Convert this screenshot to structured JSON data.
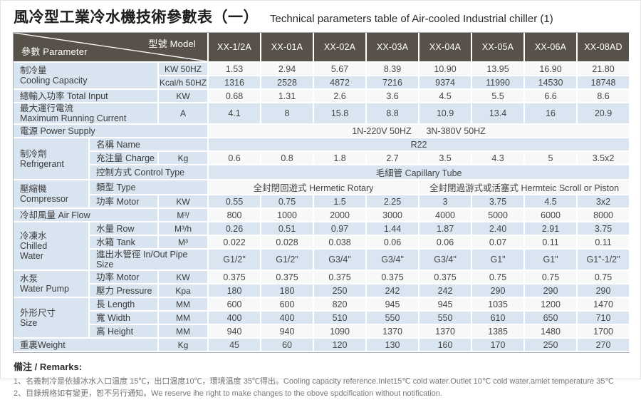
{
  "title": {
    "zh": "風冷型工業冷水機技術參數表（一）",
    "en": "Technical parameters table of Air-cooled Industrial chiller (1)"
  },
  "table": {
    "corner": {
      "top": "型號 Model",
      "bottom": "參數 Parameter"
    },
    "models": [
      "XX-1/2A",
      "XX-01A",
      "XX-02A",
      "XX-03A",
      "XX-04A",
      "XX-05A",
      "XX-06A",
      "XX-08AD"
    ],
    "rows": [
      {
        "band": "w",
        "cells": [
          {
            "kind": "label",
            "text": "制冷量\nCooling Capacity",
            "colspan": 2,
            "rowspan": 2
          },
          {
            "kind": "unit",
            "text": "KW 50HZ"
          }
        ],
        "values": [
          "1.53",
          "2.94",
          "5.67",
          "8.39",
          "10.90",
          "13.95",
          "16.90",
          "21.80"
        ]
      },
      {
        "band": "b",
        "cells": [
          {
            "kind": "unit",
            "text": "Kcal/h 50HZ"
          }
        ],
        "values": [
          "1316",
          "2528",
          "4872",
          "7216",
          "9374",
          "11990",
          "14530",
          "18748"
        ]
      },
      {
        "band": "w",
        "cells": [
          {
            "kind": "label",
            "text": "總輸入功率 Total Input",
            "colspan": 2
          },
          {
            "kind": "unit",
            "text": "KW"
          }
        ],
        "values": [
          "0.68",
          "1.31",
          "2.6",
          "3.6",
          "4.5",
          "5.5",
          "6.6",
          "8.6"
        ]
      },
      {
        "band": "b",
        "tall": true,
        "cells": [
          {
            "kind": "label",
            "text": "最大運行電流\nMaximum Running Current",
            "colspan": 2
          },
          {
            "kind": "unit",
            "text": "A"
          }
        ],
        "values": [
          "4.1",
          "8",
          "15.8",
          "8.8",
          "10.9",
          "13.4",
          "16",
          "20.9"
        ]
      },
      {
        "band": "w",
        "cells": [
          {
            "kind": "label",
            "text": "電源 Power Supply",
            "colspan": 3
          }
        ],
        "merged": [
          {
            "text": "1N-220V 50HZ      3N-380V 50HZ",
            "span": 8
          }
        ]
      },
      {
        "band": "b",
        "cells": [
          {
            "kind": "label",
            "text": "制冷劑\nRefrigerant",
            "rowspan": 3
          },
          {
            "kind": "label",
            "text": "名稱 Name",
            "colspan": 2
          }
        ],
        "merged": [
          {
            "text": "R22",
            "span": 8
          }
        ]
      },
      {
        "band": "w",
        "cells": [
          {
            "kind": "label",
            "text": "充注量 Charge"
          },
          {
            "kind": "unit",
            "text": "Kg"
          }
        ],
        "values": [
          "0.6",
          "0.8",
          "1.8",
          "2.7",
          "3.5",
          "4.3",
          "5",
          "3.5x2"
        ]
      },
      {
        "band": "b",
        "cells": [
          {
            "kind": "label",
            "text": "控制方式 Control Type",
            "colspan": 2
          }
        ],
        "merged": [
          {
            "text": "毛細管 Capillary Tube",
            "span": 8
          }
        ]
      },
      {
        "band": "w",
        "cells": [
          {
            "kind": "label",
            "text": "壓縮機\nCompressor",
            "rowspan": 2
          },
          {
            "kind": "label",
            "text": "類型 Type",
            "colspan": 2
          }
        ],
        "merged": [
          {
            "text": "全封閉回遊式 Hermetic Rotary",
            "span": 4
          },
          {
            "text": "全封閉過游式或活塞式 Hermteic Scroll or Piston",
            "span": 4
          }
        ]
      },
      {
        "band": "b",
        "cells": [
          {
            "kind": "label",
            "text": "功率 Motor"
          },
          {
            "kind": "unit",
            "text": "KW"
          }
        ],
        "values": [
          "0.55",
          "0.75",
          "1.5",
          "2.25",
          "3",
          "3.75",
          "4.5",
          "3x2"
        ]
      },
      {
        "band": "w",
        "cells": [
          {
            "kind": "label",
            "text": "冷却風量 Air Flow",
            "colspan": 2
          },
          {
            "kind": "unit",
            "text": "M³/"
          }
        ],
        "values": [
          "800",
          "1000",
          "2000",
          "3000",
          "4000",
          "5000",
          "6000",
          "8000"
        ]
      },
      {
        "band": "b",
        "cells": [
          {
            "kind": "label",
            "text": "冷凍水\nChilled\nWater",
            "rowspan": 3
          },
          {
            "kind": "label",
            "text": "水量 Row"
          },
          {
            "kind": "unit",
            "text": "M³/h"
          }
        ],
        "values": [
          "0.26",
          "0.51",
          "0.97",
          "1.44",
          "1.87",
          "2.40",
          "2.91",
          "3.75"
        ]
      },
      {
        "band": "w",
        "cells": [
          {
            "kind": "label",
            "text": "水箱 Tank"
          },
          {
            "kind": "unit",
            "text": "M³"
          }
        ],
        "values": [
          "0.022",
          "0.028",
          "0.038",
          "0.06",
          "0.06",
          "0.07",
          "0.11",
          "0.11"
        ]
      },
      {
        "band": "b",
        "cells": [
          {
            "kind": "label",
            "text": "進出水管徑 In/Out Pipe Size",
            "colspan": 2
          }
        ],
        "values": [
          "G1/2\"",
          "G1/2\"",
          "G3/4\"",
          "G3/4\"",
          "G3/4\"",
          "G1\"",
          "G1\"",
          "G1\"-1/2\""
        ]
      },
      {
        "band": "w",
        "cells": [
          {
            "kind": "label",
            "text": "水泵\nWater Pump",
            "rowspan": 2
          },
          {
            "kind": "label",
            "text": "功率 Motor"
          },
          {
            "kind": "unit",
            "text": "KW"
          }
        ],
        "values": [
          "0.375",
          "0.375",
          "0.375",
          "0.375",
          "0.375",
          "0.75",
          "0.75",
          "0.75"
        ]
      },
      {
        "band": "b",
        "cells": [
          {
            "kind": "label",
            "text": "壓力 Pressure"
          },
          {
            "kind": "unit",
            "text": "Kpa"
          }
        ],
        "values": [
          "180",
          "180",
          "250",
          "242",
          "242",
          "290",
          "290",
          "290"
        ]
      },
      {
        "band": "w",
        "cells": [
          {
            "kind": "label",
            "text": "外形尺寸\nSize",
            "rowspan": 3
          },
          {
            "kind": "label",
            "text": "長 Length"
          },
          {
            "kind": "unit",
            "text": "MM"
          }
        ],
        "values": [
          "600",
          "600",
          "820",
          "945",
          "945",
          "1035",
          "1200",
          "1470"
        ]
      },
      {
        "band": "b",
        "cells": [
          {
            "kind": "label",
            "text": "寬 Width"
          },
          {
            "kind": "unit",
            "text": "MM"
          }
        ],
        "values": [
          "400",
          "400",
          "510",
          "550",
          "550",
          "610",
          "650",
          "710"
        ]
      },
      {
        "band": "w",
        "cells": [
          {
            "kind": "label",
            "text": "高 Height"
          },
          {
            "kind": "unit",
            "text": "MM"
          }
        ],
        "values": [
          "940",
          "940",
          "1090",
          "1370",
          "1370",
          "1385",
          "1480",
          "1700"
        ]
      },
      {
        "band": "b",
        "cells": [
          {
            "kind": "label",
            "text": "重裏Weight",
            "colspan": 2
          },
          {
            "kind": "unit",
            "text": "Kg"
          }
        ],
        "values": [
          "45",
          "60",
          "120",
          "130",
          "160",
          "170",
          "250",
          "270"
        ]
      }
    ]
  },
  "remarks": {
    "heading": "備注 / Remarks:",
    "lines": [
      "1、名義制冷是依據冰水入口温度 15℃，出口温度10℃，環境温度 35℃得出。Cooling capacity reference.Inlet15℃ cold water.Outlet 10℃ cold water.amiet temperature 35℃",
      "2、目錄規格如有變更，恕不另行通知。We reserve ihe right to make changes to the obove spdcification without notification."
    ]
  },
  "colors": {
    "header_bg": "#575149",
    "header_text": "#ffffff",
    "band_blue": "#d9e6f2",
    "band_white": "#f7f8f8",
    "label_bg": "#d8e5f1"
  }
}
